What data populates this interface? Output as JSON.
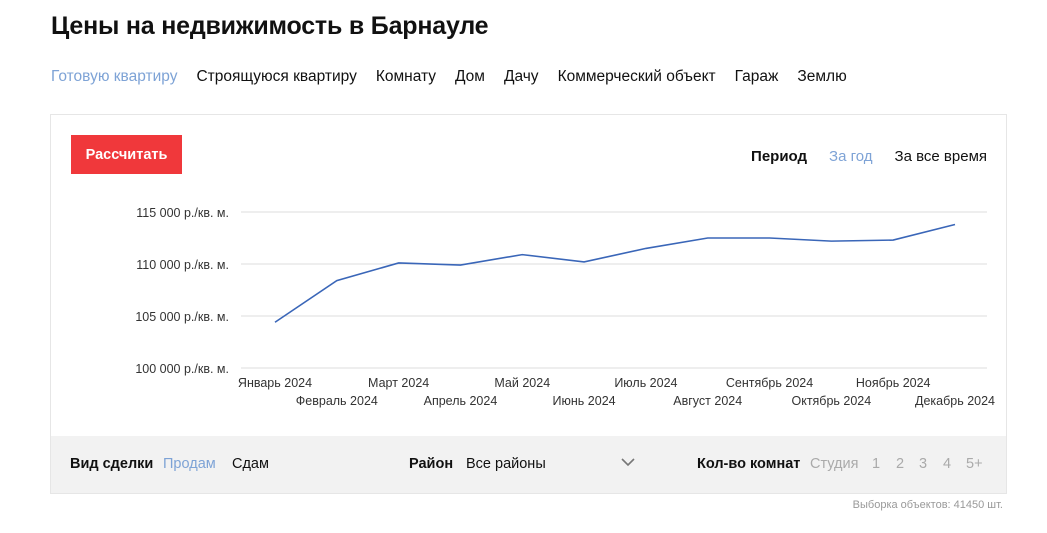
{
  "header": {
    "title": "Цены на недвижимость в Барнауле"
  },
  "tabs": [
    {
      "label": "Готовую квартиру",
      "active": true
    },
    {
      "label": "Строящуюся квартиру",
      "active": false
    },
    {
      "label": "Комнату",
      "active": false
    },
    {
      "label": "Дом",
      "active": false
    },
    {
      "label": "Дачу",
      "active": false
    },
    {
      "label": "Коммерческий объект",
      "active": false
    },
    {
      "label": "Гараж",
      "active": false
    },
    {
      "label": "Землю",
      "active": false
    }
  ],
  "calc_button": {
    "label": "Рассчитать"
  },
  "period": {
    "label": "Период",
    "options": [
      "За год",
      "За все время"
    ],
    "active": 0
  },
  "colors": {
    "accent": "#7ea3d6",
    "line": "#3a66b8",
    "button": "#f0383b",
    "grid": "#dcdcdc"
  },
  "chart_data": {
    "type": "line",
    "categories": [
      "Январь 2024",
      "Февраль 2024",
      "Март 2024",
      "Апрель 2024",
      "Май 2024",
      "Июнь 2024",
      "Июль 2024",
      "Август 2024",
      "Сентябрь 2024",
      "Октябрь 2024",
      "Ноябрь 2024",
      "Декабрь 2024"
    ],
    "series": [
      {
        "values": [
          104400,
          108400,
          110100,
          109900,
          110900,
          110200,
          111500,
          112500,
          112500,
          112200,
          112300,
          113800
        ]
      }
    ],
    "ylim": [
      100000,
      115000
    ],
    "yticks": [
      {
        "value": 115000,
        "label": "115 000 р./кв. м."
      },
      {
        "value": 110000,
        "label": "110 000 р./кв. м."
      },
      {
        "value": 105000,
        "label": "105 000 р./кв. м."
      },
      {
        "value": 100000,
        "label": "100 000 р./кв. м."
      }
    ],
    "grid": true,
    "legend": false
  },
  "filters": {
    "deal": {
      "label": "Вид сделки",
      "options": [
        "Продам",
        "Сдам"
      ],
      "active": 0
    },
    "district": {
      "label": "Район",
      "value": "Все районы"
    },
    "rooms": {
      "label": "Кол-во комнат",
      "options": [
        "Студия",
        "1",
        "2",
        "3",
        "4",
        "5+"
      ]
    }
  },
  "sample": {
    "text": "Выборка объектов: 41450 шт."
  }
}
